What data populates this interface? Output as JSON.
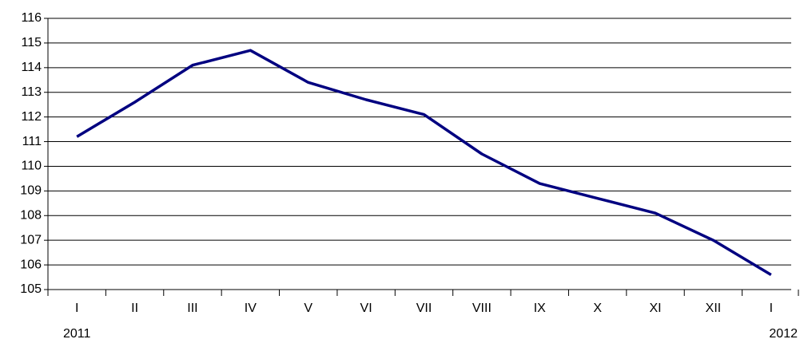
{
  "chart_data": {
    "type": "line",
    "categories": [
      "I",
      "II",
      "III",
      "IV",
      "V",
      "VI",
      "VII",
      "VIII",
      "IX",
      "X",
      "XI",
      "XII",
      "I"
    ],
    "years": [
      "2011",
      null,
      null,
      null,
      null,
      null,
      null,
      null,
      null,
      null,
      null,
      null,
      "2012"
    ],
    "series": [
      {
        "color": "#000080",
        "values": [
          111.2,
          112.6,
          114.1,
          114.7,
          113.4,
          112.7,
          112.1,
          110.5,
          109.3,
          108.7,
          108.1,
          107.0,
          105.6
        ]
      }
    ],
    "ylim": [
      105,
      116
    ],
    "yticks": [
      105,
      106,
      107,
      108,
      109,
      110,
      111,
      112,
      113,
      114,
      115,
      116
    ],
    "grid": true
  }
}
